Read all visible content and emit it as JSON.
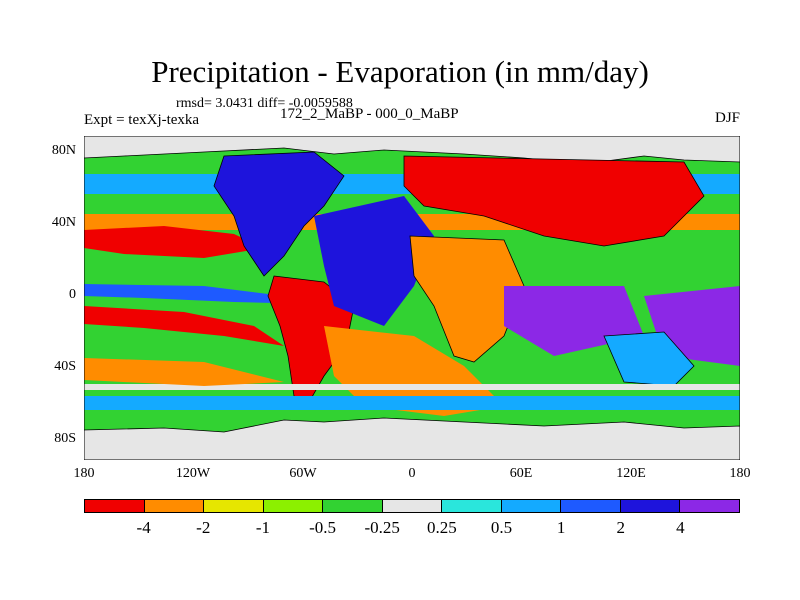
{
  "title": "Precipitation - Evaporation (in mm/day)",
  "stats": "rmsd= 3.0431 diff= -0.0059588",
  "experiment": "Expt = texXj-texka",
  "difference": "172_2_MaBP - 000_0_MaBP",
  "season": "DJF",
  "lat_labels": [
    "80N",
    "40N",
    "0",
    "40S",
    "80S"
  ],
  "lon_labels": [
    "180",
    "120W",
    "60W",
    "0",
    "60E",
    "120E",
    "180"
  ],
  "colorbar": {
    "labels": [
      "-4",
      "-2",
      "-1",
      "-0.5",
      "-0.25",
      "0.25",
      "0.5",
      "1",
      "2",
      "4"
    ],
    "colors": [
      "#f00000",
      "#ff8c00",
      "#e6e600",
      "#8cf000",
      "#32d232",
      "#e6e6e6",
      "#2ae6dc",
      "#14aaff",
      "#1e5aff",
      "#1e14dc",
      "#8c28e6"
    ]
  }
}
